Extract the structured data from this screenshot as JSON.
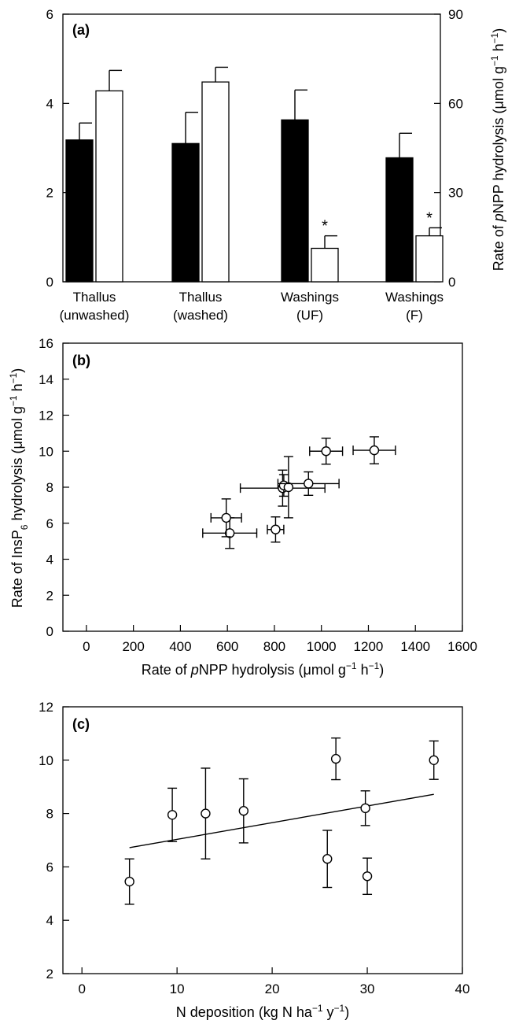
{
  "chart_data": [
    {
      "panel": "(a)",
      "type": "bar",
      "categories": [
        [
          "Thallus",
          "(unwashed)"
        ],
        [
          "Thallus",
          "(washed)"
        ],
        [
          "Washings",
          "(UF)"
        ],
        [
          "Washings",
          "(F)"
        ]
      ],
      "ylim": [
        0,
        6
      ],
      "y_ticks": [
        "0",
        "2",
        "4",
        "6"
      ],
      "y2lim": [
        0,
        90
      ],
      "y2_ticks": [
        "0",
        "30",
        "60",
        "90"
      ],
      "ylabel_right": [
        "Rate of ",
        "p",
        "NPP hydrolysis (",
        "μ",
        "mol g",
        "−1",
        " h",
        "−1",
        ")"
      ],
      "series": [
        {
          "color": "#000000",
          "axis": "left",
          "values": [
            3.18,
            3.1,
            3.63,
            2.78
          ],
          "errors": [
            0.38,
            0.7,
            0.67,
            0.55
          ],
          "markers": [
            "",
            "",
            "",
            ""
          ]
        },
        {
          "color": "#ffffff",
          "axis": "left",
          "values": [
            4.28,
            4.48,
            0.75,
            1.03
          ],
          "errors": [
            0.46,
            0.33,
            0.28,
            0.18
          ],
          "markers": [
            "",
            "",
            "*",
            "*"
          ]
        }
      ]
    },
    {
      "panel": "(b)",
      "type": "scatter",
      "xlim": [
        -100,
        1600
      ],
      "ylim": [
        0,
        16
      ],
      "x_ticks": [
        "0",
        "200",
        "400",
        "600",
        "800",
        "1000",
        "1200",
        "1400",
        "1600"
      ],
      "y_ticks": [
        "0",
        "2",
        "4",
        "6",
        "8",
        "10",
        "12",
        "14",
        "16"
      ],
      "xlabel": [
        "Rate of ",
        "p",
        "NPP hydrolysis (",
        "μ",
        "mol g",
        "−1",
        " h",
        "−1",
        ")"
      ],
      "ylabel": [
        "Rate of InsP",
        "6",
        " hydrolysis (",
        "μ",
        "mol g",
        "−1",
        " h",
        "−1",
        ")"
      ],
      "points": [
        {
          "x": 610,
          "y": 5.45,
          "xerr": 115,
          "yerr": 0.85
        },
        {
          "x": 595,
          "y": 6.3,
          "xerr": 65,
          "yerr": 1.05
        },
        {
          "x": 805,
          "y": 5.65,
          "xerr": 35,
          "yerr": 0.7
        },
        {
          "x": 835,
          "y": 7.95,
          "xerr": 180,
          "yerr": 1.0
        },
        {
          "x": 840,
          "y": 8.1,
          "xerr": 0,
          "yerr": 0.6
        },
        {
          "x": 860,
          "y": 8.0,
          "xerr": 0,
          "yerr": 1.7
        },
        {
          "x": 945,
          "y": 8.2,
          "xerr": 130,
          "yerr": 0.65
        },
        {
          "x": 1020,
          "y": 10.0,
          "xerr": 70,
          "yerr": 0.72
        },
        {
          "x": 1225,
          "y": 10.05,
          "xerr": 90,
          "yerr": 0.75
        }
      ]
    },
    {
      "panel": "(c)",
      "type": "scatter",
      "xlim": [
        -2,
        40
      ],
      "ylim": [
        2,
        12
      ],
      "x_ticks": [
        "0",
        "10",
        "20",
        "30",
        "40"
      ],
      "y_ticks": [
        "2",
        "4",
        "6",
        "8",
        "10",
        "12"
      ],
      "xlabel": [
        "N deposition (kg N ha",
        "−1",
        " y",
        "−1",
        ")"
      ],
      "points": [
        {
          "x": 5,
          "y": 5.45,
          "yerr": 0.85
        },
        {
          "x": 9.5,
          "y": 7.95,
          "yerr": 1.0
        },
        {
          "x": 13,
          "y": 8.0,
          "yerr": 1.7
        },
        {
          "x": 17,
          "y": 8.1,
          "yerr": 1.2
        },
        {
          "x": 25.8,
          "y": 6.3,
          "yerr": 1.07
        },
        {
          "x": 26.7,
          "y": 10.05,
          "yerr": 0.78
        },
        {
          "x": 29.8,
          "y": 8.2,
          "yerr": 0.65
        },
        {
          "x": 30,
          "y": 5.65,
          "yerr": 0.68
        },
        {
          "x": 37,
          "y": 10.0,
          "yerr": 0.72
        }
      ],
      "fit_line": {
        "x": [
          5,
          37
        ],
        "y": [
          6.72,
          8.72
        ]
      }
    }
  ]
}
